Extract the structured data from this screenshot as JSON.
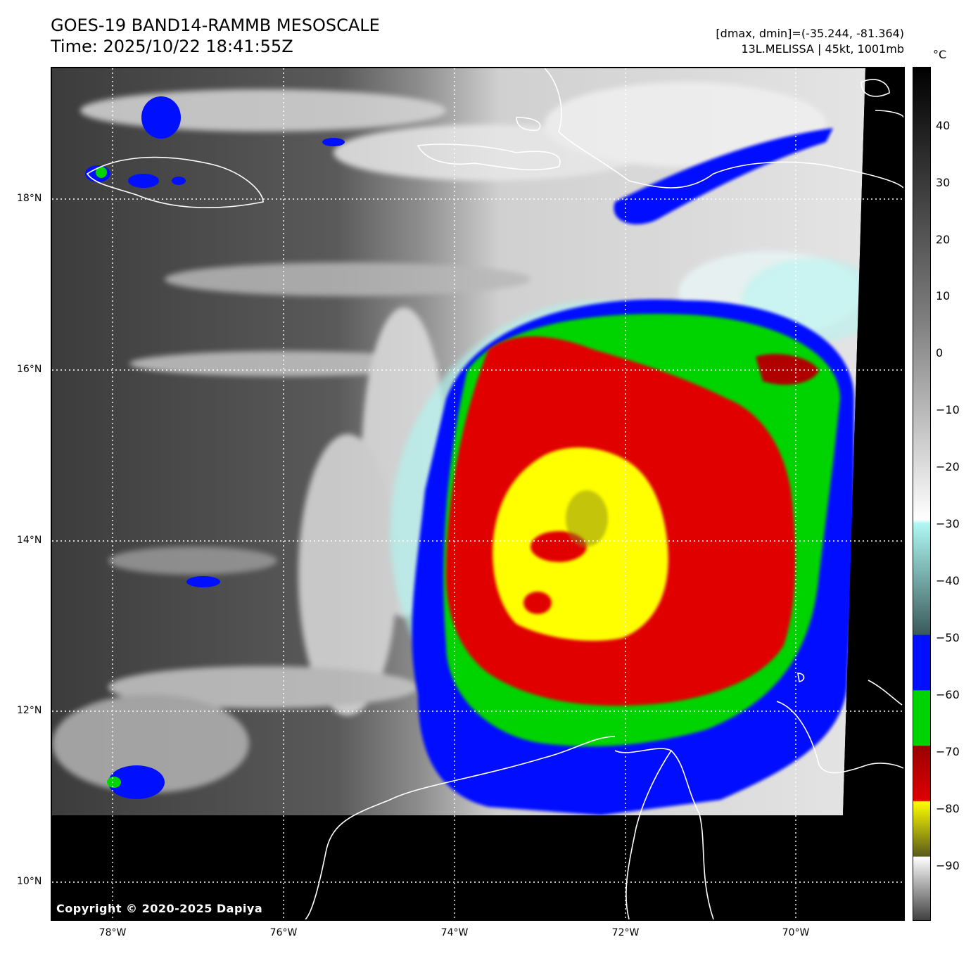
{
  "header": {
    "title": "GOES-19 BAND14-RAMMB MESOSCALE",
    "time": "Time: 2025/10/22 18:41:55Z",
    "range": "[dmax, dmin]=(-35.244, -81.364)",
    "storm": "13L.MELISSA | 45kt, 1001mb"
  },
  "map": {
    "copyright": "Copyright © 2020-2025 Dapiya",
    "lat_labels": [
      "18°N",
      "16°N",
      "14°N",
      "12°N",
      "10°N"
    ],
    "lon_labels": [
      "78°W",
      "76°W",
      "74°W",
      "72°W",
      "70°W"
    ]
  },
  "colorbar": {
    "unit": "°C",
    "ticks": [
      "40",
      "30",
      "20",
      "10",
      "0",
      "−10",
      "−20",
      "−30",
      "−40",
      "−50",
      "−60",
      "−70",
      "−80",
      "−90"
    ],
    "colors": {
      "warm_top": "#000000",
      "warm_mid": "#808080",
      "cold_white": "#ffffff",
      "cyan": "#aef7f2",
      "blue": "#0010ff",
      "green": "#00d400",
      "red": "#e00000",
      "yellow": "#ffff00",
      "olive": "#5a5a1a"
    }
  }
}
